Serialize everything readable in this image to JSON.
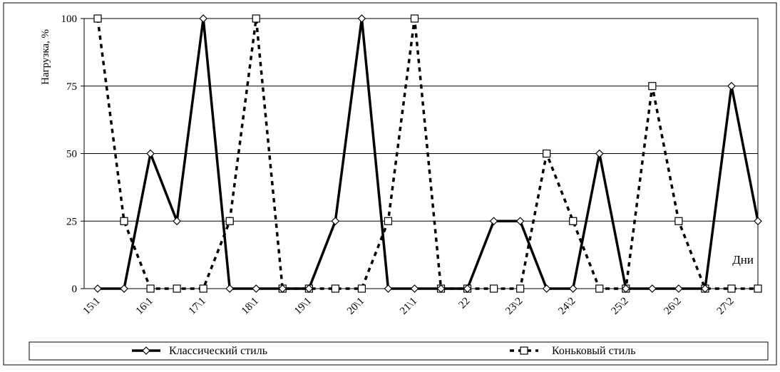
{
  "chart_data": {
    "type": "line",
    "ylabel": "Нагрузка, %",
    "xlabel": "Дни",
    "ylim": [
      0,
      100
    ],
    "yticks": [
      0,
      25,
      50,
      75,
      100
    ],
    "grid": true,
    "legend_position": "bottom",
    "categories": [
      "15\\1",
      "",
      "16\\1",
      "",
      "17\\1",
      "",
      "18\\1",
      "",
      "19\\1",
      "",
      "20\\1",
      "",
      "21\\1",
      "",
      "22",
      "",
      "23\\2",
      "",
      "24\\2",
      "",
      "25\\2",
      "",
      "26\\2",
      "",
      "27\\2",
      ""
    ],
    "series": [
      {
        "name": "Классический стиль",
        "style": "solid",
        "marker": "diamond",
        "color": "#000000",
        "values": [
          0,
          0,
          50,
          25,
          100,
          0,
          0,
          0,
          0,
          25,
          100,
          0,
          0,
          0,
          0,
          25,
          25,
          0,
          0,
          50,
          0,
          0,
          0,
          0,
          75,
          25
        ]
      },
      {
        "name": "Коньковый стиль",
        "style": "dashed",
        "marker": "square",
        "color": "#000000",
        "values": [
          100,
          25,
          0,
          0,
          0,
          25,
          100,
          0,
          0,
          0,
          0,
          25,
          100,
          0,
          0,
          0,
          0,
          50,
          25,
          0,
          0,
          75,
          25,
          0,
          0,
          0
        ]
      }
    ]
  }
}
